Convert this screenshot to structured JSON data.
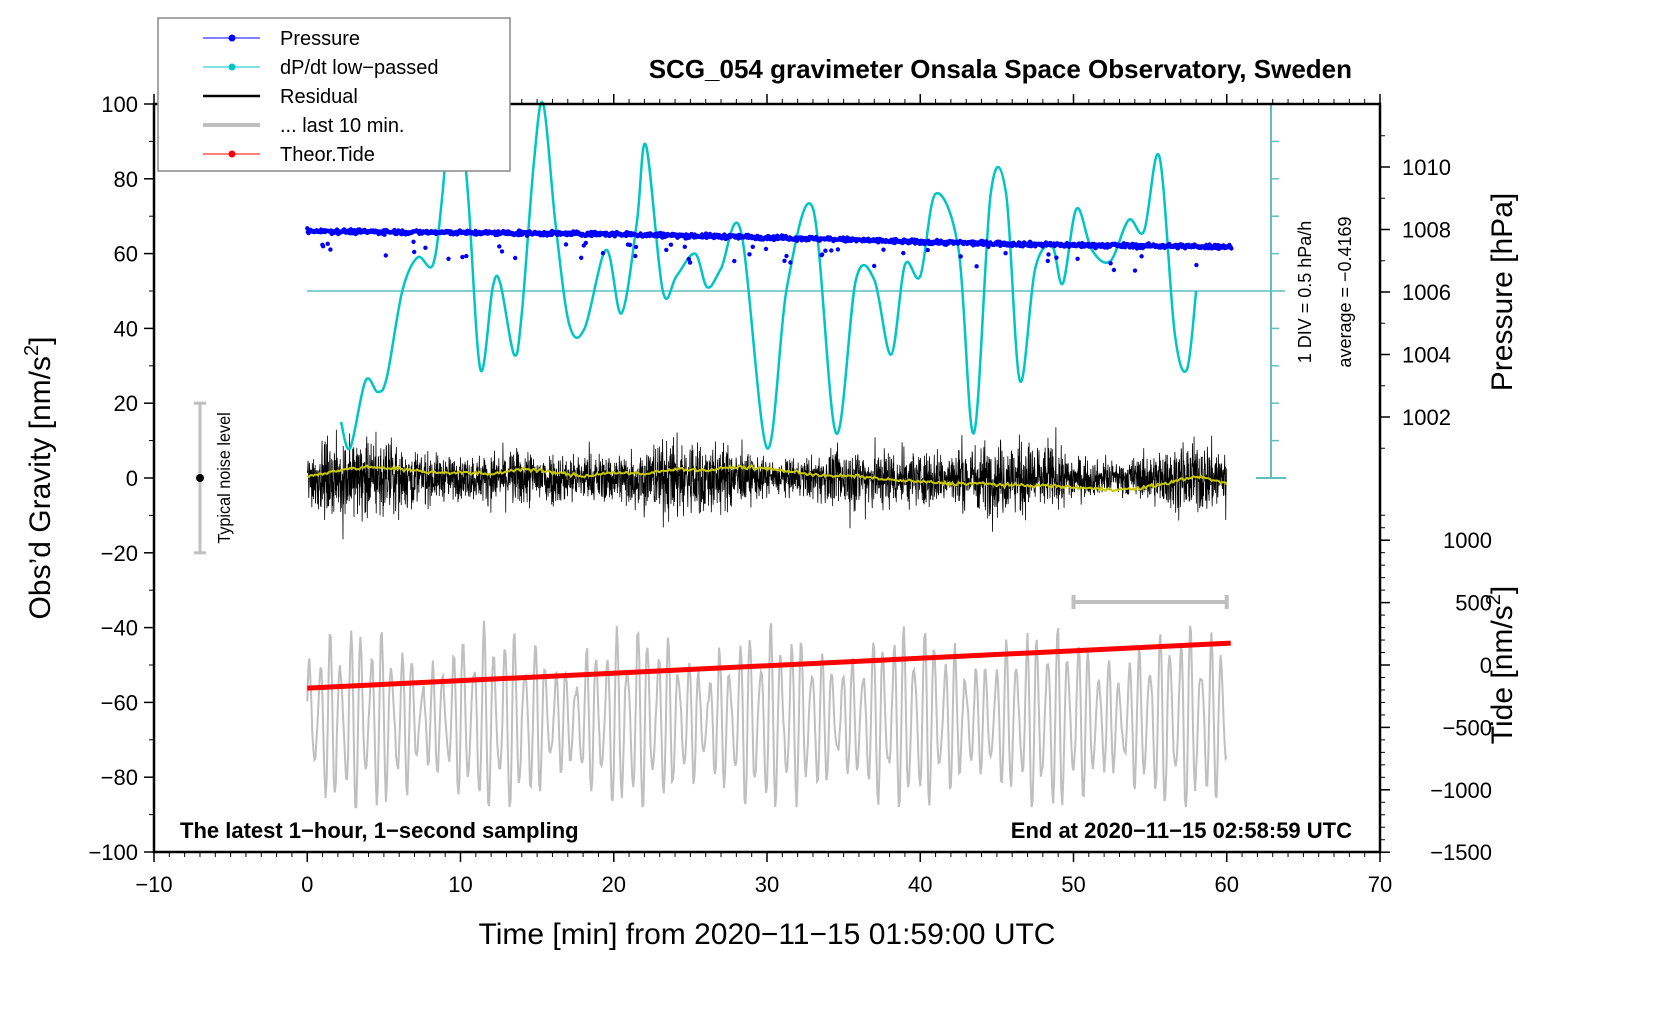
{
  "chart_data": {
    "type": "line",
    "title": "SCG_054 gravimeter Onsala Space Observatory, Sweden",
    "xlabel": "Time [min] from 2020−11−15 01:59:00 UTC",
    "ylabel_left": "Obs’d Gravity [nm/s²]",
    "ylabel_right_top": "Pressure [hPa]",
    "ylabel_right_bottom": "Tide [nm/s²]",
    "xlim": [
      -10,
      70
    ],
    "ylim_left": [
      -100,
      100
    ],
    "x_ticks": [
      "−10",
      "0",
      "10",
      "20",
      "30",
      "40",
      "50",
      "60",
      "70"
    ],
    "x_tick_values": [
      -10,
      0,
      10,
      20,
      30,
      40,
      50,
      60,
      70
    ],
    "y_left_ticks": [
      "100",
      "80",
      "60",
      "40",
      "20",
      "0",
      "−20",
      "−40",
      "−60",
      "−80",
      "−100"
    ],
    "y_left_tick_values": [
      100,
      80,
      60,
      40,
      20,
      0,
      -20,
      -40,
      -60,
      -80,
      -100
    ],
    "pressure_axis": {
      "ticks": [
        "1010",
        "1008",
        "1006",
        "1004",
        "1002"
      ],
      "tick_values": [
        1010,
        1008,
        1006,
        1004,
        1002
      ]
    },
    "tide_axis": {
      "ticks": [
        "1000",
        "500",
        "0",
        "−500",
        "−1000",
        "−1500"
      ],
      "tick_values": [
        1000,
        500,
        0,
        -500,
        -1000,
        -1500
      ]
    },
    "dpdt_scale": {
      "label": "1 DIV = 0.5 hPa/h",
      "average_label": "average = −0.4169",
      "div_value": 0.5,
      "average": -0.4169,
      "divisions_each_side": 5
    },
    "legend": {
      "placement": "top-left",
      "entries": [
        {
          "label": "Pressure",
          "color": "#0000ff",
          "marker": "dot"
        },
        {
          "label": "dP/dt low−passed",
          "color": "#00c5c5",
          "marker": "dot"
        },
        {
          "label": "Residual",
          "color": "#000000",
          "marker": "line"
        },
        {
          "label": "... last 10 min.",
          "color": "#bfbfbf",
          "marker": "line"
        },
        {
          "label": "Theor.Tide",
          "color": "#ff0000",
          "marker": "dot"
        }
      ]
    },
    "annotations": {
      "bottom_left": "The latest 1−hour, 1−second sampling",
      "bottom_right": "End at 2020−11−15 02:58:59 UTC",
      "noise_label": "Typical noise level",
      "noise_range": [
        -20,
        20
      ]
    },
    "series": [
      {
        "name": "Pressure",
        "axis": "pressure",
        "color": "#0000ff",
        "x": [
          0,
          10,
          20,
          30,
          40,
          50,
          60
        ],
        "values": [
          1007.95,
          1007.9,
          1007.85,
          1007.75,
          1007.6,
          1007.5,
          1007.45
        ]
      },
      {
        "name": "dP/dt low-passed",
        "axis": "dpdt_div",
        "color": "#00c5c5",
        "x": [
          2.2,
          2.8,
          3.8,
          4.6,
          5.2,
          6.2,
          7.2,
          8.2,
          8.8,
          9.2,
          9.7,
          10.5,
          11.3,
          12.1,
          12.6,
          13.5,
          14.0,
          14.8,
          15.4,
          16.2,
          17.1,
          18.1,
          19.5,
          20.5,
          21.5,
          22.1,
          23.2,
          24.1,
          25.3,
          26.1,
          27.0,
          28.3,
          30.0,
          31.3,
          33.0,
          34.5,
          35.8,
          37.0,
          38.1,
          39.0,
          40.0,
          41.0,
          42.5,
          43.5,
          44.6,
          45.6,
          46.5,
          47.5,
          48.6,
          49.3,
          50.2,
          51.2,
          52.4,
          53.6,
          54.6,
          55.6,
          56.6,
          57.4,
          58.0
        ],
        "values": [
          -3.5,
          -4.2,
          -2.4,
          -2.7,
          -2.3,
          0.0,
          0.9,
          0.7,
          2.5,
          4.5,
          6.1,
          2.5,
          -2.1,
          0.1,
          0.2,
          -1.7,
          -0.6,
          3.5,
          5.0,
          1.8,
          -0.9,
          -1.0,
          1.1,
          -0.6,
          1.8,
          3.9,
          0.0,
          0.4,
          1.0,
          0.1,
          0.6,
          1.6,
          -4.2,
          0.1,
          2.2,
          -3.8,
          0.3,
          0.3,
          -1.7,
          0.7,
          0.4,
          2.6,
          1.1,
          -3.8,
          2.6,
          2.6,
          -2.4,
          0.6,
          1.2,
          0.2,
          2.2,
          1.1,
          0.8,
          1.9,
          1.6,
          3.6,
          -1.1,
          -2.1,
          0.0
        ]
      },
      {
        "name": "Residual",
        "axis": "left",
        "color": "#000000",
        "x": [
          0,
          60
        ],
        "amplitude_range": [
          -28,
          26
        ],
        "mean": 0
      },
      {
        "name": "Residual smoothed",
        "axis": "left",
        "color": "#c8c800",
        "x": [
          0,
          2,
          4,
          6,
          8,
          10,
          12,
          14,
          16,
          18,
          20,
          22,
          24,
          26,
          28,
          30,
          32,
          34,
          36,
          38,
          40,
          42,
          44,
          46,
          48,
          50,
          52,
          54,
          56,
          58,
          60
        ],
        "values": [
          0.5,
          2.0,
          3.0,
          2.5,
          1.5,
          1.5,
          1.0,
          2.5,
          1.5,
          0.5,
          1.5,
          1.0,
          2.5,
          2.0,
          3.0,
          2.5,
          1.5,
          0.5,
          0.5,
          -0.5,
          -1.0,
          -1.5,
          -1.5,
          -2.0,
          -2.0,
          -2.5,
          -3.0,
          -3.0,
          -1.5,
          0.5,
          -1.5
        ]
      },
      {
        "name": "... last 10 min.",
        "axis": "left",
        "color": "#bfbfbf",
        "x_span": [
          50,
          60
        ],
        "amplitude_range": [
          -88,
          -37
        ]
      },
      {
        "name": "Theor.Tide",
        "axis": "tide",
        "color": "#ff0000",
        "x": [
          0,
          60
        ],
        "values": [
          -185,
          175
        ]
      }
    ]
  }
}
